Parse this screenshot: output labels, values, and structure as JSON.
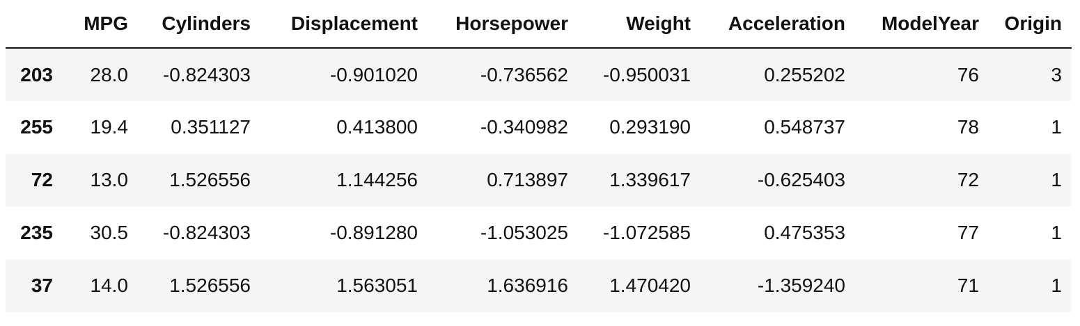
{
  "table": {
    "index_header": "",
    "columns": [
      "MPG",
      "Cylinders",
      "Displacement",
      "Horsepower",
      "Weight",
      "Acceleration",
      "ModelYear",
      "Origin"
    ],
    "rows": [
      {
        "index": "203",
        "cells": [
          "28.0",
          "-0.824303",
          "-0.901020",
          "-0.736562",
          "-0.950031",
          "0.255202",
          "76",
          "3"
        ]
      },
      {
        "index": "255",
        "cells": [
          "19.4",
          "0.351127",
          "0.413800",
          "-0.340982",
          "0.293190",
          "0.548737",
          "78",
          "1"
        ]
      },
      {
        "index": "72",
        "cells": [
          "13.0",
          "1.526556",
          "1.144256",
          "0.713897",
          "1.339617",
          "-0.625403",
          "72",
          "1"
        ]
      },
      {
        "index": "235",
        "cells": [
          "30.5",
          "-0.824303",
          "-0.891280",
          "-1.053025",
          "-1.072585",
          "0.475353",
          "77",
          "1"
        ]
      },
      {
        "index": "37",
        "cells": [
          "14.0",
          "1.526556",
          "1.563051",
          "1.636916",
          "1.470420",
          "-1.359240",
          "71",
          "1"
        ]
      }
    ]
  }
}
